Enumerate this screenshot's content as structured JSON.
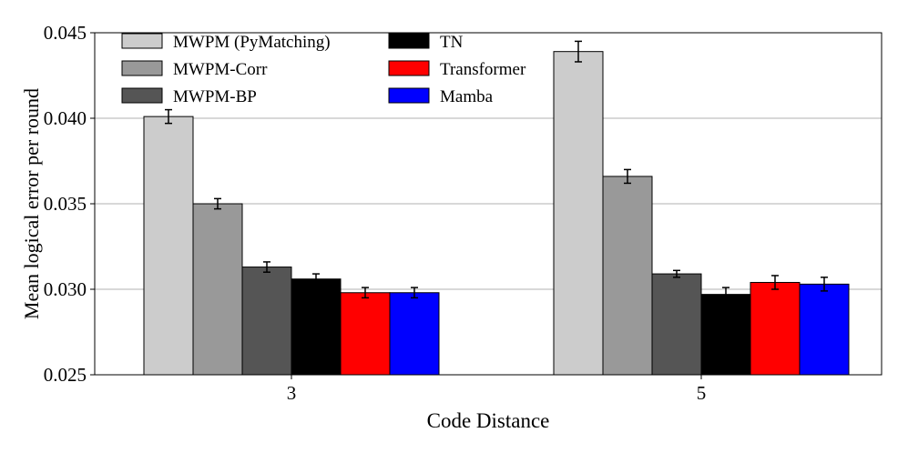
{
  "chart_data": {
    "type": "bar",
    "title": "",
    "xlabel": "Code Distance",
    "ylabel": "Mean logical error per round",
    "categories": [
      "3",
      "5"
    ],
    "ylim": [
      0.025,
      0.045
    ],
    "yticks": [
      "0.025",
      "0.030",
      "0.035",
      "0.040",
      "0.045"
    ],
    "grid": "horizontal",
    "legend_position": "top-left",
    "series": [
      {
        "name": "MWPM (PyMatching)",
        "color": "#cccccc",
        "values": [
          0.0401,
          0.0439
        ],
        "errors": [
          0.0004,
          0.0006
        ]
      },
      {
        "name": "MWPM-Corr",
        "color": "#999999",
        "values": [
          0.035,
          0.0366
        ],
        "errors": [
          0.0003,
          0.0004
        ]
      },
      {
        "name": "MWPM-BP",
        "color": "#555555",
        "values": [
          0.0313,
          0.0309
        ],
        "errors": [
          0.0003,
          0.0002
        ]
      },
      {
        "name": "TN",
        "color": "#000000",
        "values": [
          0.0306,
          0.0297
        ],
        "errors": [
          0.0003,
          0.0004
        ]
      },
      {
        "name": "Transformer",
        "color": "#ff0000",
        "values": [
          0.0298,
          0.0304
        ],
        "errors": [
          0.0003,
          0.0004
        ]
      },
      {
        "name": "Mamba",
        "color": "#0000ff",
        "values": [
          0.0298,
          0.0303
        ],
        "errors": [
          0.0003,
          0.0004
        ]
      }
    ]
  }
}
